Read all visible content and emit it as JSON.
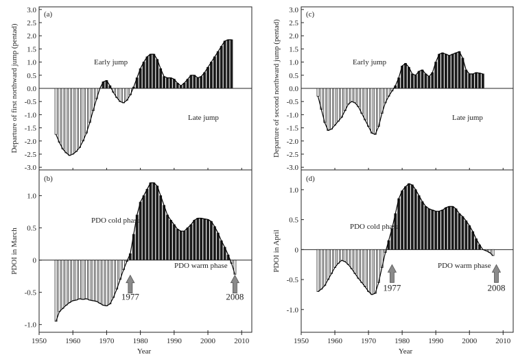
{
  "colors": {
    "bar_stroke": "#222222",
    "axis": "#222222",
    "arrow_fill": "#8a8a8a",
    "curve": "#000000"
  },
  "left_column": {
    "xlabel": "Year",
    "xticks": [
      "1950",
      "1960",
      "1970",
      "1980",
      "1990",
      "2000",
      "2010"
    ]
  },
  "right_column": {
    "xlabel": "Year",
    "xticks": [
      "1950",
      "1960",
      "1970",
      "1980",
      "1990",
      "2000",
      "2010"
    ]
  },
  "chart_data": [
    {
      "id": "a",
      "type": "bar",
      "panel_label": "(a)",
      "ylabel": "Departure of first northward jump (pentad)",
      "xlim": [
        1950,
        2013
      ],
      "ylim": [
        -3.1,
        3.1
      ],
      "yticks": [
        3.0,
        2.5,
        2.0,
        1.5,
        1.0,
        0.5,
        0.0,
        -0.5,
        -1.0,
        -1.5,
        -2.0,
        -2.5,
        -3.0
      ],
      "ytick_labels": [
        "3.0",
        "2.5",
        "2.0",
        "1.5",
        "1.0",
        "0.5",
        "0.0",
        "-0.5",
        "-1.0",
        "-1.5",
        "-2.0",
        "-2.5",
        "-3.0"
      ],
      "annotations": [
        {
          "text": "Early jump"
        },
        {
          "text": "Late jump"
        }
      ],
      "x_start": 1955,
      "values": [
        -1.75,
        -2.05,
        -2.3,
        -2.45,
        -2.55,
        -2.5,
        -2.4,
        -2.25,
        -2.0,
        -1.7,
        -1.3,
        -0.85,
        -0.4,
        0.0,
        0.25,
        0.3,
        0.1,
        -0.15,
        -0.35,
        -0.5,
        -0.55,
        -0.45,
        -0.25,
        0.05,
        0.4,
        0.75,
        1.0,
        1.2,
        1.3,
        1.3,
        1.1,
        0.75,
        0.45,
        0.4,
        0.4,
        0.35,
        0.2,
        0.1,
        0.2,
        0.35,
        0.5,
        0.5,
        0.4,
        0.45,
        0.6,
        0.8,
        1.0,
        1.2,
        1.4,
        1.6,
        1.8,
        1.85,
        1.85
      ]
    },
    {
      "id": "b",
      "type": "bar",
      "panel_label": "(b)",
      "ylabel": "PDOI in March",
      "xlim": [
        1950,
        2013
      ],
      "ylim": [
        -1.12,
        1.4
      ],
      "yticks": [
        1.0,
        0.5,
        0.0,
        -0.5,
        -1.0
      ],
      "ytick_labels": [
        "1.0",
        "0.5",
        "0",
        "-0.5",
        "-1.0"
      ],
      "annotations": [
        {
          "text": "PDO cold phase"
        },
        {
          "text": "PDO warm phase"
        }
      ],
      "markers": [
        {
          "year": 1977,
          "label": "1977"
        },
        {
          "year": 2008,
          "label": "2008"
        }
      ],
      "x_start": 1955,
      "values": [
        -0.95,
        -0.8,
        -0.75,
        -0.7,
        -0.66,
        -0.63,
        -0.62,
        -0.6,
        -0.61,
        -0.6,
        -0.62,
        -0.63,
        -0.64,
        -0.67,
        -0.7,
        -0.71,
        -0.68,
        -0.58,
        -0.45,
        -0.3,
        -0.15,
        -0.02,
        0.1,
        0.4,
        0.7,
        0.9,
        1.0,
        1.1,
        1.2,
        1.2,
        1.15,
        1.0,
        0.85,
        0.7,
        0.62,
        0.55,
        0.48,
        0.45,
        0.45,
        0.5,
        0.55,
        0.62,
        0.65,
        0.65,
        0.64,
        0.63,
        0.6,
        0.52,
        0.42,
        0.3,
        0.2,
        0.08,
        -0.05,
        -0.22
      ]
    },
    {
      "id": "c",
      "type": "bar",
      "panel_label": "(c)",
      "ylabel": "Departure of second northward jump (pentad)",
      "xlim": [
        1950,
        2013
      ],
      "ylim": [
        -3.1,
        3.1
      ],
      "yticks": [
        3.0,
        2.5,
        2.0,
        1.5,
        1.0,
        0.5,
        0.0,
        -0.5,
        -1.0,
        -1.5,
        -2.0,
        -2.5,
        -3.0
      ],
      "ytick_labels": [
        "3.0",
        "2.5",
        "2.0",
        "1.5",
        "1.0",
        "0.5",
        "0.0",
        "-0.5",
        "-1.0",
        "-1.5",
        "-2.0",
        "-2.5",
        "-3.0"
      ],
      "annotations": [
        {
          "text": "Early jump"
        },
        {
          "text": "Late jump"
        }
      ],
      "x_start": 1955,
      "values": [
        -0.3,
        -0.8,
        -1.3,
        -1.6,
        -1.55,
        -1.4,
        -1.25,
        -1.1,
        -0.85,
        -0.6,
        -0.5,
        -0.55,
        -0.7,
        -0.95,
        -1.2,
        -1.45,
        -1.7,
        -1.75,
        -1.45,
        -0.95,
        -0.55,
        -0.3,
        -0.1,
        0.1,
        0.4,
        0.85,
        0.95,
        0.8,
        0.55,
        0.5,
        0.65,
        0.7,
        0.55,
        0.45,
        0.6,
        1.0,
        1.3,
        1.35,
        1.3,
        1.25,
        1.3,
        1.35,
        1.4,
        1.15,
        0.7,
        0.55,
        0.55,
        0.6,
        0.58,
        0.55
      ]
    },
    {
      "id": "d",
      "type": "bar",
      "panel_label": "(d)",
      "ylabel": "PDOI in April",
      "xlim": [
        1950,
        2013
      ],
      "ylim": [
        -1.38,
        1.33
      ],
      "yticks": [
        1.0,
        0.5,
        0.0,
        -0.5,
        -1.0
      ],
      "ytick_labels": [
        "1.0",
        "0.5",
        "0",
        "-0.5",
        "-1.0"
      ],
      "annotations": [
        {
          "text": "PDO cold phase"
        },
        {
          "text": "PDO warm phase"
        }
      ],
      "markers": [
        {
          "year": 1977,
          "label": "1977"
        },
        {
          "year": 2008,
          "label": "2008"
        }
      ],
      "x_start": 1955,
      "values": [
        -0.7,
        -0.66,
        -0.6,
        -0.5,
        -0.4,
        -0.3,
        -0.23,
        -0.18,
        -0.2,
        -0.25,
        -0.32,
        -0.4,
        -0.48,
        -0.55,
        -0.62,
        -0.7,
        -0.75,
        -0.73,
        -0.55,
        -0.3,
        -0.05,
        0.15,
        0.35,
        0.6,
        0.85,
        0.98,
        1.05,
        1.1,
        1.08,
        1.0,
        0.9,
        0.8,
        0.72,
        0.68,
        0.66,
        0.64,
        0.64,
        0.66,
        0.7,
        0.72,
        0.72,
        0.68,
        0.6,
        0.55,
        0.48,
        0.4,
        0.3,
        0.18,
        0.08,
        0.0,
        -0.02,
        -0.05,
        -0.1
      ]
    }
  ]
}
